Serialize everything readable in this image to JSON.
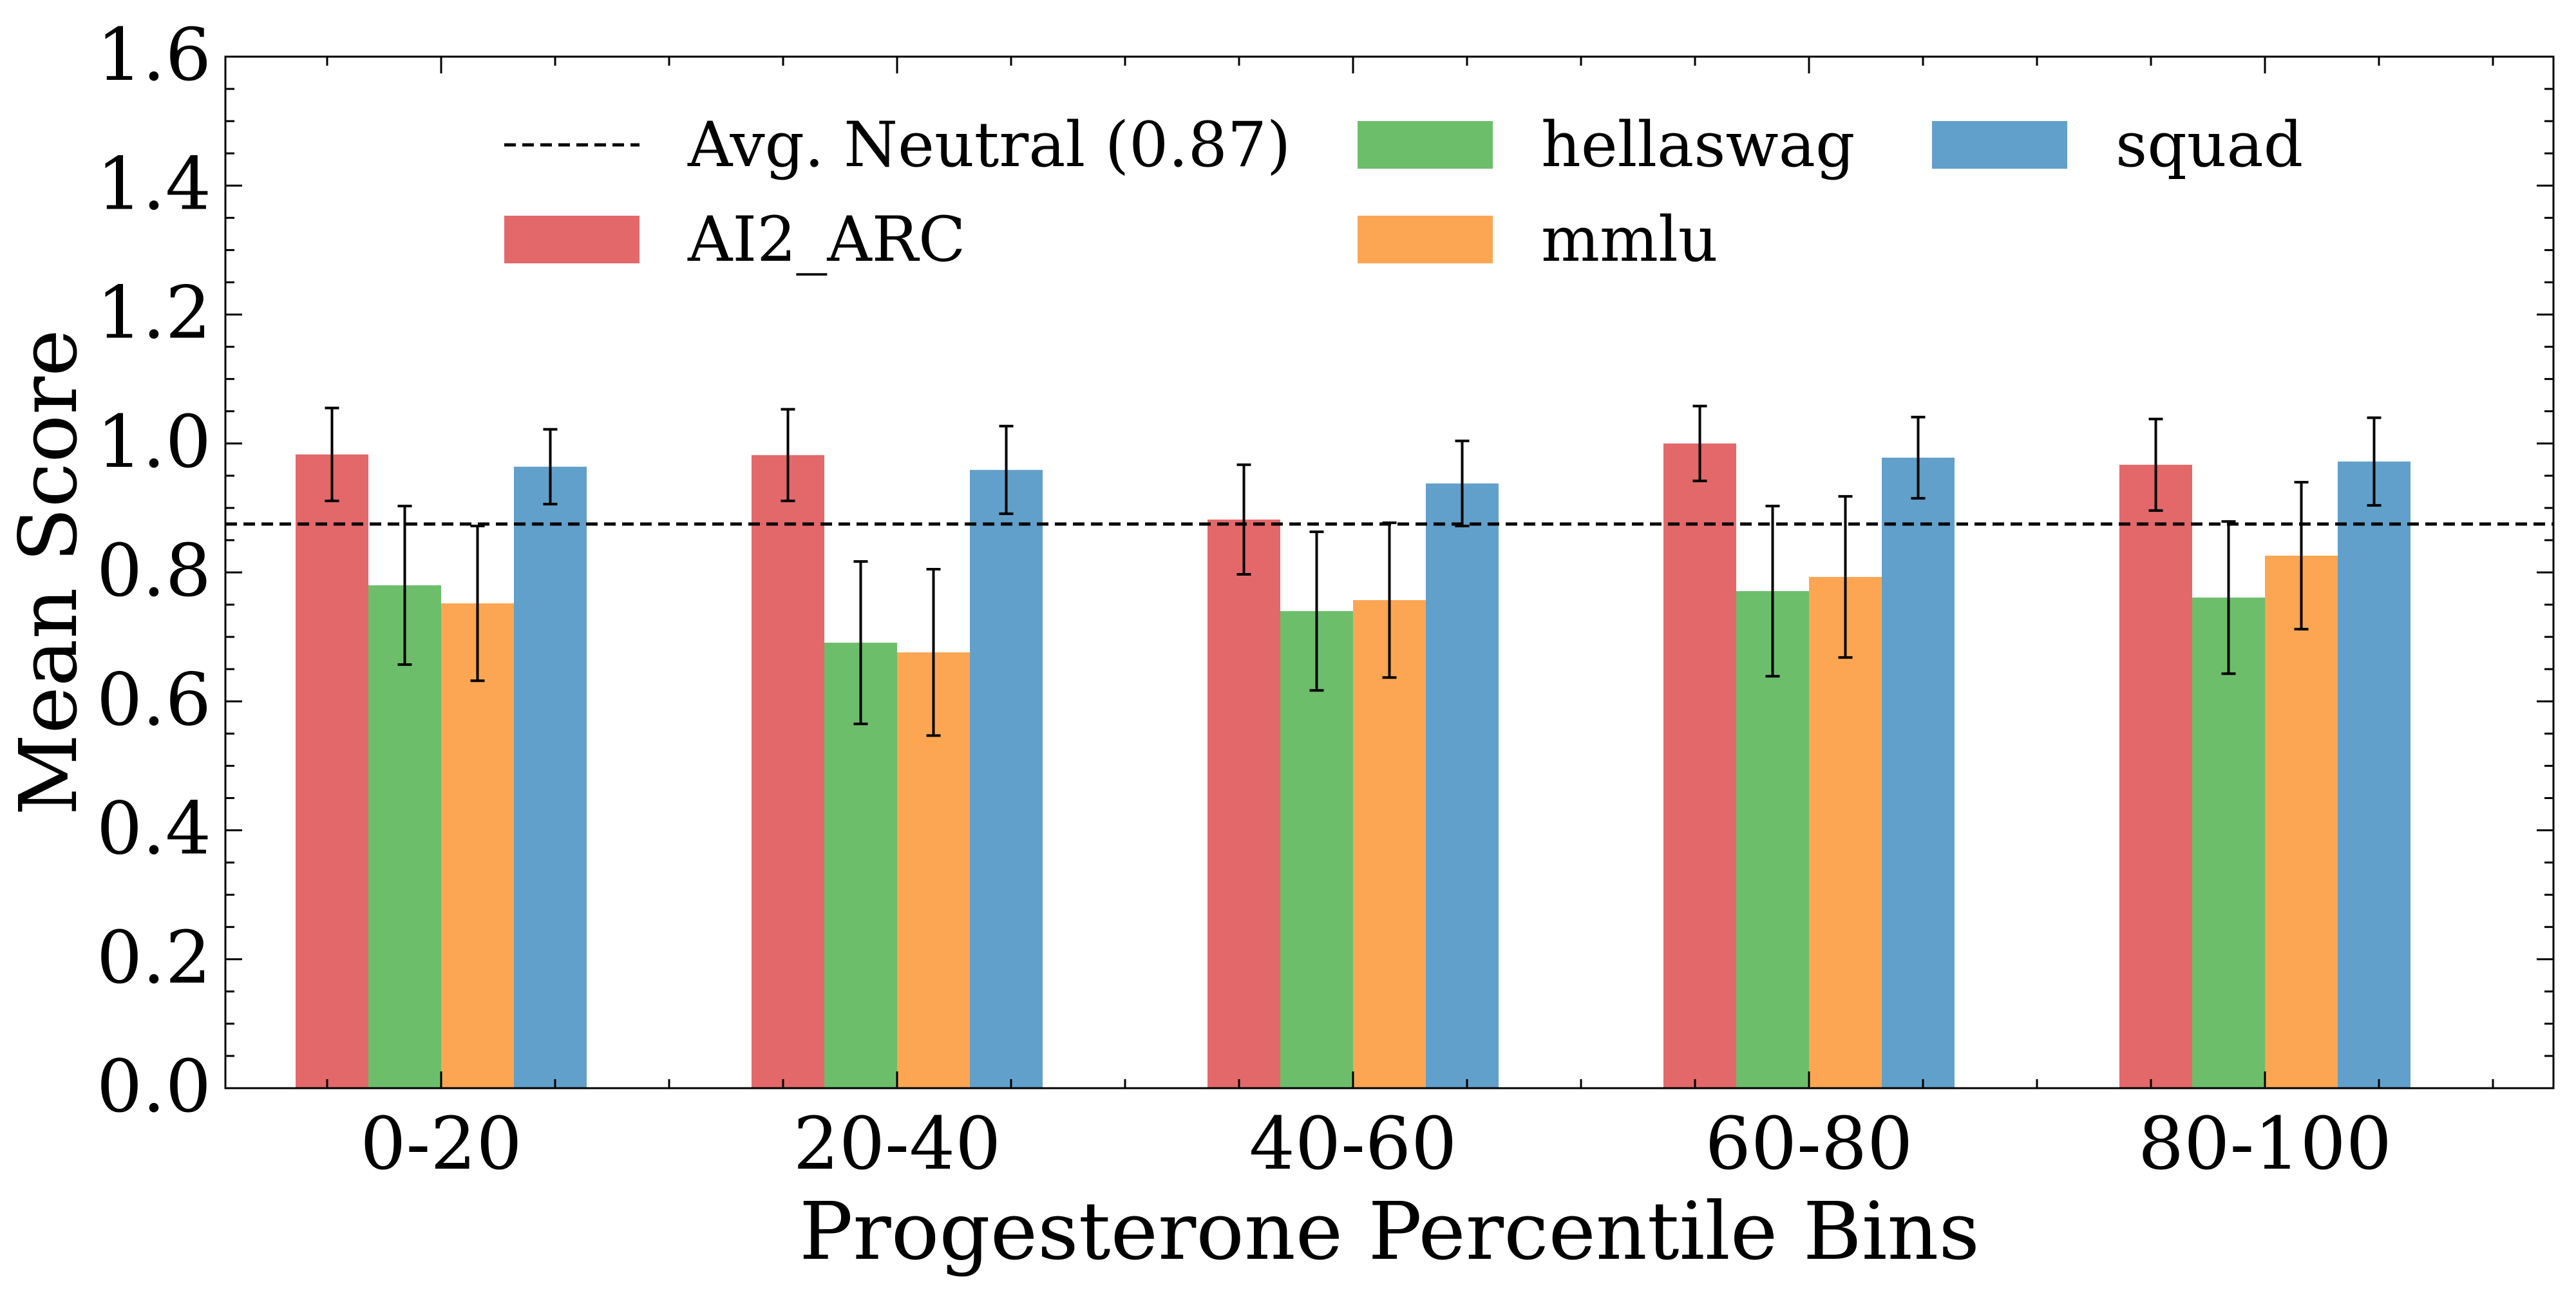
{
  "chart_data": {
    "type": "bar",
    "title": "",
    "xlabel": "Progesterone Percentile Bins",
    "ylabel": "Mean Score",
    "categories": [
      "0-20",
      "20-40",
      "40-60",
      "60-80",
      "80-100"
    ],
    "ylim": [
      0,
      1.6
    ],
    "yticks": [
      "0.0",
      "0.2",
      "0.4",
      "0.6",
      "0.8",
      "1.0",
      "1.2",
      "1.4",
      "1.6"
    ],
    "series": [
      {
        "name": "AI2_ARC",
        "color": "#e36869",
        "values": [
          0.983,
          0.982,
          0.882,
          1.0,
          0.967
        ],
        "errors": [
          0.072,
          0.071,
          0.085,
          0.058,
          0.071
        ]
      },
      {
        "name": "hellaswag",
        "color": "#6cbe6b",
        "values": [
          0.78,
          0.691,
          0.74,
          0.771,
          0.761
        ],
        "errors": [
          0.123,
          0.126,
          0.123,
          0.132,
          0.118
        ]
      },
      {
        "name": "mmlu",
        "color": "#fca654",
        "values": [
          0.752,
          0.676,
          0.757,
          0.793,
          0.826
        ],
        "errors": [
          0.12,
          0.129,
          0.12,
          0.125,
          0.114
        ]
      },
      {
        "name": "squad",
        "color": "#61a0ca",
        "values": [
          0.964,
          0.959,
          0.938,
          0.978,
          0.972
        ],
        "errors": [
          0.058,
          0.068,
          0.066,
          0.063,
          0.068
        ]
      }
    ],
    "reference_line": {
      "label": "Avg. Neutral (0.87)",
      "value": 0.875,
      "style": "dashed",
      "color": "#000000"
    },
    "grid": false,
    "legend": "top"
  }
}
